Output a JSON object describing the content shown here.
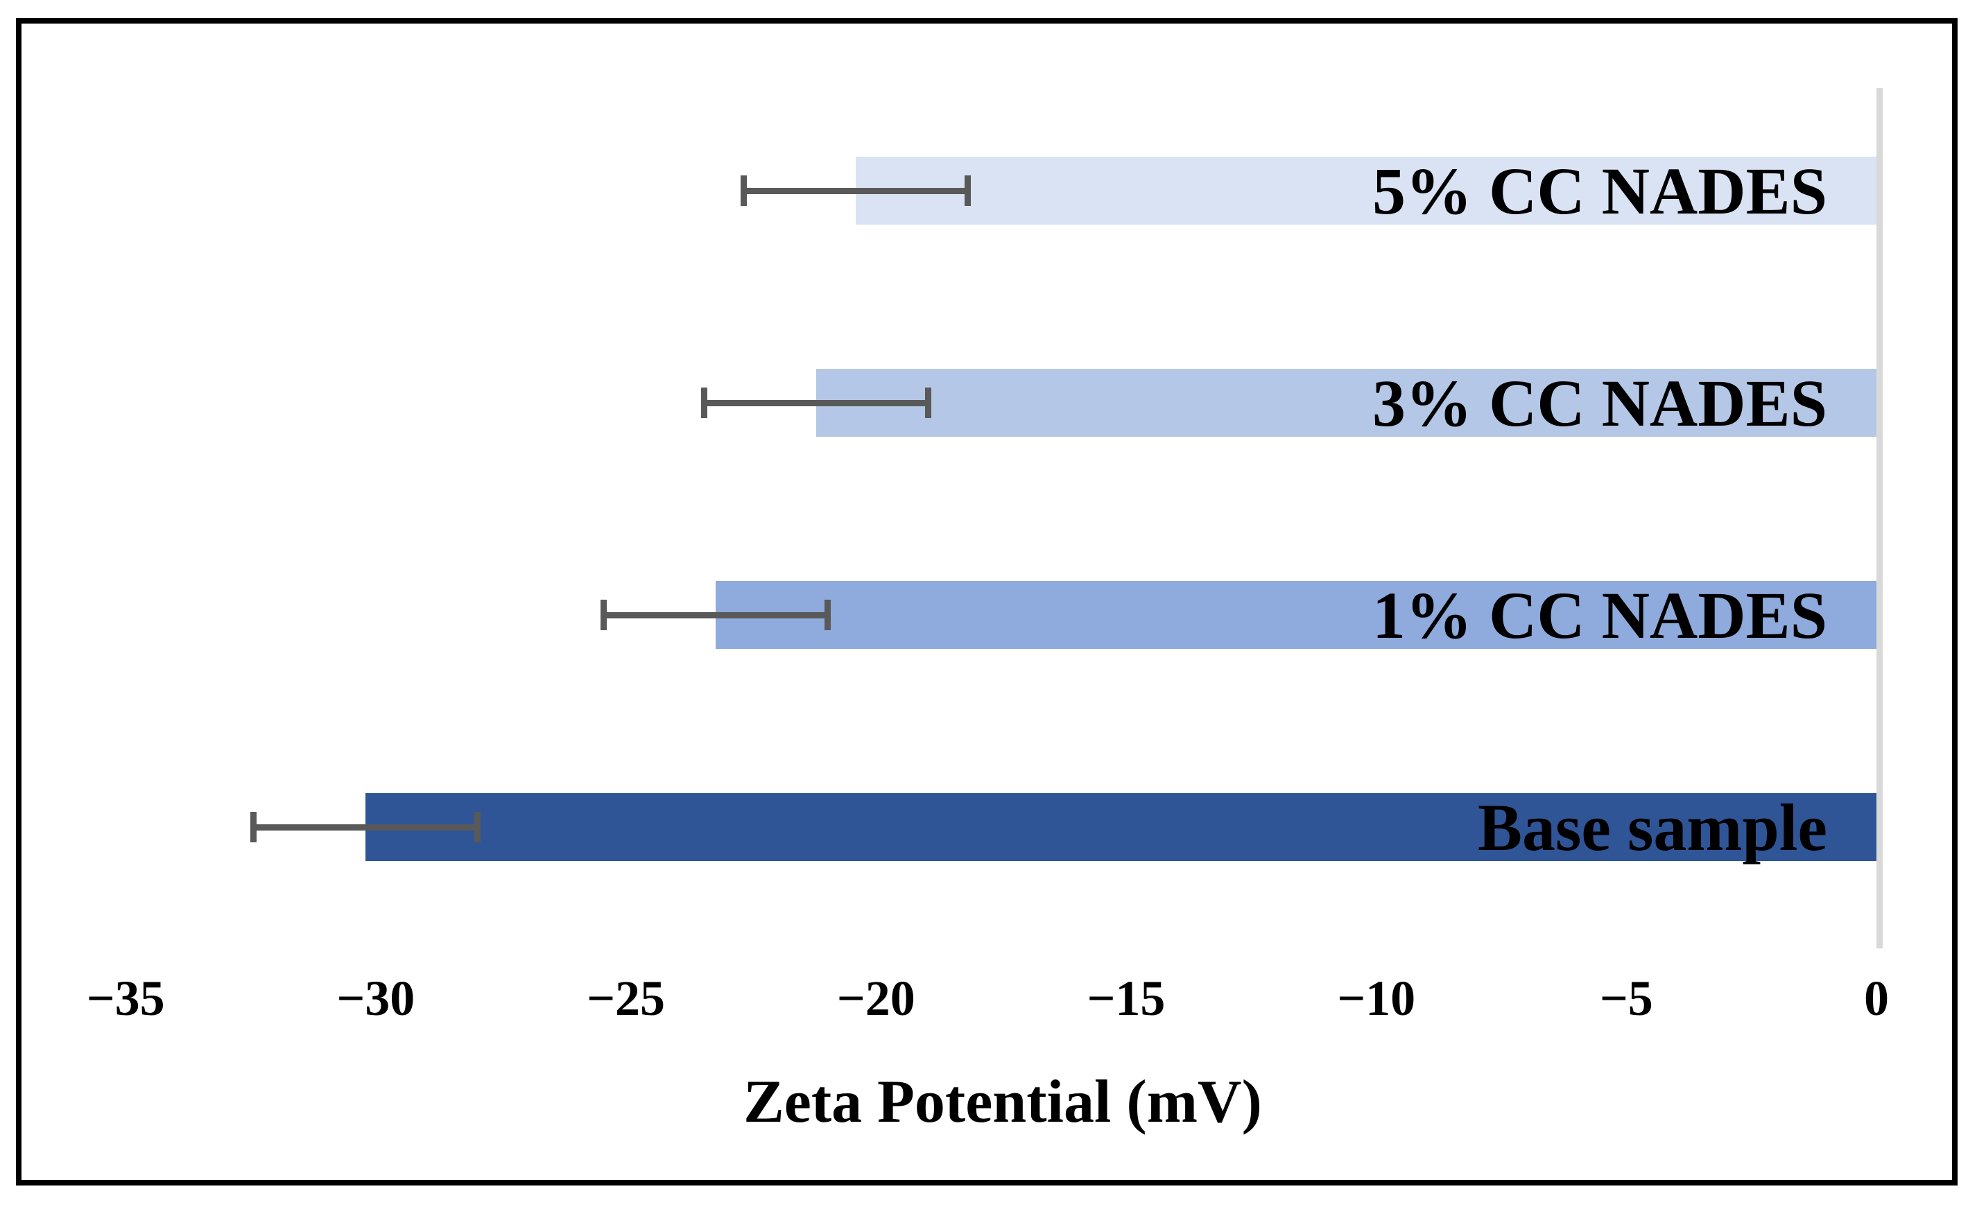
{
  "figure": {
    "background_color": "#ffffff",
    "frame_color": "#000000"
  },
  "chart_data": {
    "type": "bar",
    "orientation": "horizontal",
    "title": "",
    "xlabel": "Zeta Potential (mV)",
    "ylabel": "",
    "xlim": [
      -35,
      0
    ],
    "grid": false,
    "legend": "none",
    "categories": [
      "5% CC NADES",
      "3% CC NADES",
      "1% CC NADES",
      "Base sample"
    ],
    "values": [
      -20.4,
      -21.2,
      -23.2,
      -30.2
    ],
    "errors": [
      2.3,
      2.3,
      2.3,
      2.3
    ],
    "bar_colors": [
      "#dae3f3",
      "#b4c7e7",
      "#8faadc",
      "#2f5597"
    ],
    "error_bar_color": "#595959",
    "zero_axis_color": "#d9d9d9",
    "tick_labels": [
      "−35",
      "−30",
      "−25",
      "−20",
      "−15",
      "−10",
      "−5",
      "0"
    ],
    "tick_values": [
      -35,
      -30,
      -25,
      -20,
      -15,
      -10,
      -5,
      0
    ]
  }
}
